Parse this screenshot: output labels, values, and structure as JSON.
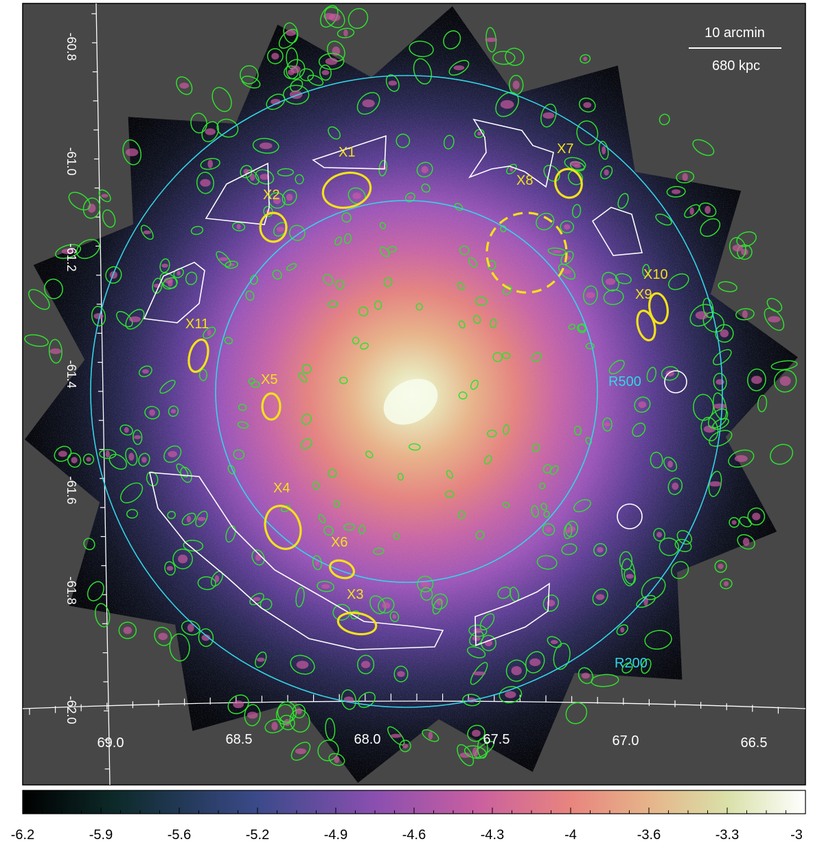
{
  "image": {
    "scale_bar": {
      "top_label": "10 arcmin",
      "bottom_label": "680 kpc"
    },
    "dec_ticks": [
      "-60.8",
      "-61.0",
      "-61.2",
      "-61.4",
      "-61.6",
      "-61.8",
      "-62.0"
    ],
    "ra_ticks": [
      "69.0",
      "68.5",
      "68.0",
      "67.5",
      "67.0",
      "66.5"
    ],
    "radius_labels": {
      "r500": "R500",
      "r200": "R200"
    },
    "source_labels": [
      "X1",
      "X2",
      "X3",
      "X4",
      "X5",
      "X6",
      "X7",
      "X8",
      "X9",
      "X10",
      "X11"
    ],
    "colorbar": {
      "ticks": [
        "-6.2",
        "-5.9",
        "-5.6",
        "-5.2",
        "-4.9",
        "-4.6",
        "-4.3",
        "-4",
        "-3.6",
        "-3.3",
        "-3"
      ],
      "colormap": [
        "#000000",
        "#0d2a2a",
        "#3b4a8a",
        "#8a4fb0",
        "#c95fa0",
        "#e8857e",
        "#e6b48a",
        "#d9e0a8",
        "#ffffff"
      ]
    },
    "colors": {
      "background": "#474747",
      "annulus": "#33d6e6",
      "point_sources": "#2fe02f",
      "regions_of_interest": "#f2e21a",
      "excluded_regions": "#ffffff"
    }
  }
}
